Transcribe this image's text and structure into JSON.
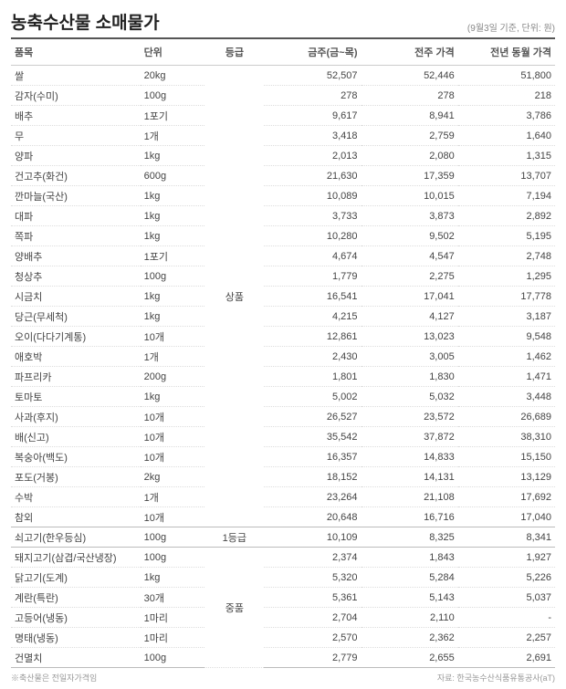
{
  "title": "농축수산물 소매물가",
  "subtitle": "(9월3일 기준, 단위: 원)",
  "columns": [
    "품목",
    "단위",
    "등급",
    "금주(금~목)",
    "전주 가격",
    "전년 동월 가격"
  ],
  "groups": [
    {
      "grade": "상품",
      "rows": [
        {
          "item": "쌀",
          "unit": "20kg",
          "v1": "52,507",
          "v2": "52,446",
          "v3": "51,800"
        },
        {
          "item": "감자(수미)",
          "unit": "100g",
          "v1": "278",
          "v2": "278",
          "v3": "218"
        },
        {
          "item": "배추",
          "unit": "1포기",
          "v1": "9,617",
          "v2": "8,941",
          "v3": "3,786"
        },
        {
          "item": "무",
          "unit": "1개",
          "v1": "3,418",
          "v2": "2,759",
          "v3": "1,640"
        },
        {
          "item": "양파",
          "unit": "1kg",
          "v1": "2,013",
          "v2": "2,080",
          "v3": "1,315"
        },
        {
          "item": "건고추(화건)",
          "unit": "600g",
          "v1": "21,630",
          "v2": "17,359",
          "v3": "13,707"
        },
        {
          "item": "깐마늘(국산)",
          "unit": "1kg",
          "v1": "10,089",
          "v2": "10,015",
          "v3": "7,194"
        },
        {
          "item": "대파",
          "unit": "1kg",
          "v1": "3,733",
          "v2": "3,873",
          "v3": "2,892"
        },
        {
          "item": "쪽파",
          "unit": "1kg",
          "v1": "10,280",
          "v2": "9,502",
          "v3": "5,195"
        },
        {
          "item": "양배추",
          "unit": "1포기",
          "v1": "4,674",
          "v2": "4,547",
          "v3": "2,748"
        },
        {
          "item": "청상추",
          "unit": "100g",
          "v1": "1,779",
          "v2": "2,275",
          "v3": "1,295"
        },
        {
          "item": "시금치",
          "unit": "1kg",
          "v1": "16,541",
          "v2": "17,041",
          "v3": "17,778"
        },
        {
          "item": "당근(무세척)",
          "unit": "1kg",
          "v1": "4,215",
          "v2": "4,127",
          "v3": "3,187"
        },
        {
          "item": "오이(다다기계통)",
          "unit": "10개",
          "v1": "12,861",
          "v2": "13,023",
          "v3": "9,548"
        },
        {
          "item": "애호박",
          "unit": "1개",
          "v1": "2,430",
          "v2": "3,005",
          "v3": "1,462"
        },
        {
          "item": "파프리카",
          "unit": "200g",
          "v1": "1,801",
          "v2": "1,830",
          "v3": "1,471"
        },
        {
          "item": "토마토",
          "unit": "1kg",
          "v1": "5,002",
          "v2": "5,032",
          "v3": "3,448"
        },
        {
          "item": "사과(후지)",
          "unit": "10개",
          "v1": "26,527",
          "v2": "23,572",
          "v3": "26,689"
        },
        {
          "item": "배(신고)",
          "unit": "10개",
          "v1": "35,542",
          "v2": "37,872",
          "v3": "38,310"
        },
        {
          "item": "복숭아(백도)",
          "unit": "10개",
          "v1": "16,357",
          "v2": "14,833",
          "v3": "15,150"
        },
        {
          "item": "포도(거봉)",
          "unit": "2kg",
          "v1": "18,152",
          "v2": "14,131",
          "v3": "13,129"
        },
        {
          "item": "수박",
          "unit": "1개",
          "v1": "23,264",
          "v2": "21,108",
          "v3": "17,692"
        },
        {
          "item": "참외",
          "unit": "10개",
          "v1": "20,648",
          "v2": "16,716",
          "v3": "17,040"
        }
      ]
    },
    {
      "grade": "1등급",
      "rows": [
        {
          "item": "쇠고기(한우등심)",
          "unit": "100g",
          "v1": "10,109",
          "v2": "8,325",
          "v3": "8,341"
        }
      ]
    },
    {
      "grade": "중품",
      "rows": [
        {
          "item": "돼지고기(삼겹/국산냉장)",
          "unit": "100g",
          "v1": "2,374",
          "v2": "1,843",
          "v3": "1,927"
        },
        {
          "item": "닭고기(도계)",
          "unit": "1kg",
          "v1": "5,320",
          "v2": "5,284",
          "v3": "5,226"
        },
        {
          "item": "계란(특란)",
          "unit": "30개",
          "v1": "5,361",
          "v2": "5,143",
          "v3": "5,037"
        },
        {
          "item": "고등어(냉동)",
          "unit": "1마리",
          "v1": "2,704",
          "v2": "2,110",
          "v3": "-"
        },
        {
          "item": "명태(냉동)",
          "unit": "1마리",
          "v1": "2,570",
          "v2": "2,362",
          "v3": "2,257"
        },
        {
          "item": "건멸치",
          "unit": "100g",
          "v1": "2,779",
          "v2": "2,655",
          "v3": "2,691"
        }
      ]
    }
  ],
  "footnote": "※축산물은 전일자가격임",
  "source": "자료: 한국농수산식품유통공사(aT)"
}
